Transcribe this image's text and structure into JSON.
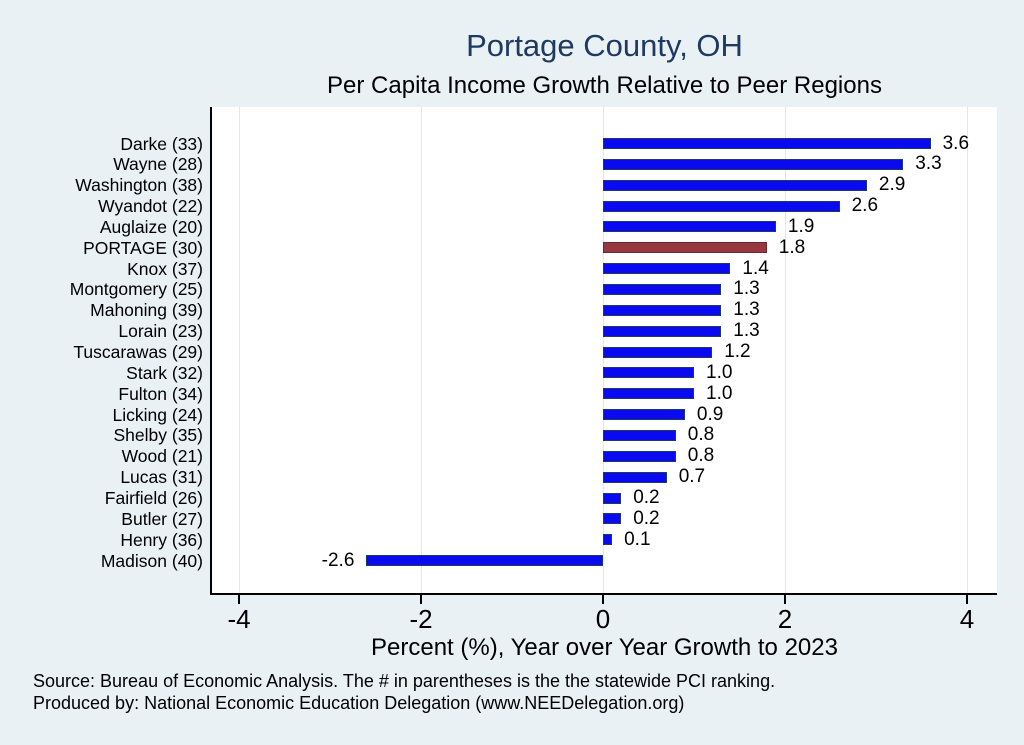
{
  "chart": {
    "title": "Portage County, OH",
    "subtitle": "Per Capita Income Growth Relative to Peer Regions",
    "xlabel": "Percent (%), Year over Year Growth to 2023"
  },
  "footer": {
    "source": "Source: Bureau of Economic Analysis. The # in parentheses is the the statewide PCI ranking.",
    "produced_by": "Produced by: National Economic Education Delegation (www.NEEDelegation.org)"
  },
  "colors": {
    "background": "#e9f1f5",
    "plot_background": "#ffffff",
    "title_navy": "#1f3a60",
    "bar_blue": "#0a0af0",
    "bar_blue_border": "#1f3a60",
    "bar_highlight": "#953840",
    "bar_highlight_border": "#6e272e",
    "gridline": "#dde9ef",
    "axis": "#000000"
  },
  "chart_data": {
    "type": "bar",
    "orientation": "horizontal",
    "title": "Portage County, OH",
    "subtitle": "Per Capita Income Growth Relative to Peer Regions",
    "xlabel": "Percent (%), Year over Year Growth to 2023",
    "xlim": [
      -4.3,
      4.33
    ],
    "xticks": [
      -4,
      -2,
      0,
      2,
      4
    ],
    "grid": "vertical-light",
    "legend": "none",
    "categories": [
      "Darke (33)",
      "Wayne (28)",
      "Washington (38)",
      "Wyandot (22)",
      "Auglaize (20)",
      "PORTAGE (30)",
      "Knox (37)",
      "Montgomery (25)",
      "Mahoning (39)",
      "Lorain (23)",
      "Tuscarawas (29)",
      "Stark (32)",
      "Fulton (34)",
      "Licking (24)",
      "Shelby (35)",
      "Wood (21)",
      "Lucas (31)",
      "Fairfield (26)",
      "Butler (27)",
      "Henry (36)",
      "Madison (40)"
    ],
    "values": [
      3.6,
      3.3,
      2.9,
      2.6,
      1.9,
      1.8,
      1.4,
      1.3,
      1.3,
      1.3,
      1.2,
      1.0,
      1.0,
      0.9,
      0.8,
      0.8,
      0.7,
      0.2,
      0.2,
      0.1,
      -2.6
    ],
    "value_labels": [
      "3.6",
      "3.3",
      "2.9",
      "2.6",
      "1.9",
      "1.8",
      "1.4",
      "1.3",
      "1.3",
      "1.3",
      "1.2",
      "1.0",
      "1.0",
      "0.9",
      "0.8",
      "0.8",
      "0.7",
      "0.2",
      "0.2",
      "0.1",
      "-2.6"
    ],
    "highlight_category": "PORTAGE (30)",
    "highlight_index": 5
  }
}
